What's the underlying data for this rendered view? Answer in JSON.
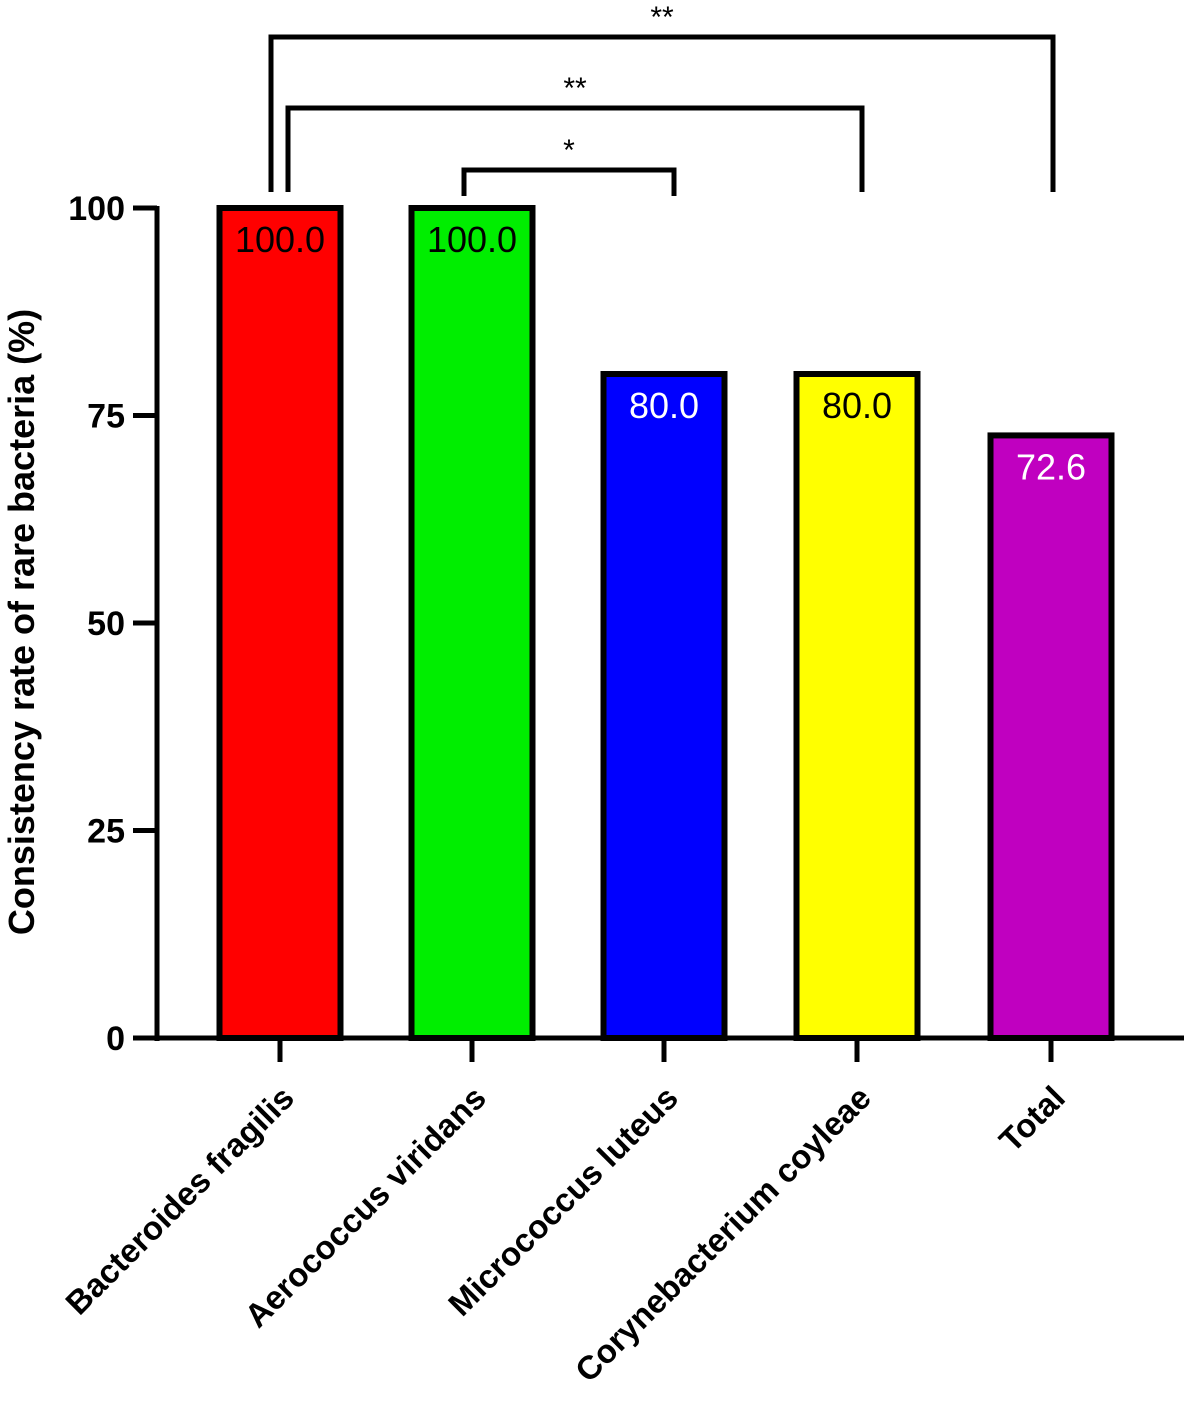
{
  "chart_data": {
    "type": "bar",
    "categories": [
      "Bacteroides fragilis",
      "Aerococcus viridans",
      "Micrococcus luteus",
      "Corynebacterium coyleae",
      "Total"
    ],
    "values": [
      100.0,
      100.0,
      80.0,
      80.0,
      72.6
    ],
    "value_labels": [
      "100.0",
      "100.0",
      "80.0",
      "80.0",
      "72.6"
    ],
    "bar_colors": [
      "#ff0000",
      "#00ee00",
      "#0000ff",
      "#ffff00",
      "#c000c0"
    ],
    "label_colors": [
      "#000000",
      "#000000",
      "#ffffff",
      "#000000",
      "#ffffff"
    ],
    "ylabel": "Consistency rate of rare bacteria (%)",
    "ylim": [
      0,
      100
    ],
    "yticks": [
      0,
      25,
      50,
      75,
      100
    ],
    "ytick_labels": [
      "0",
      "25",
      "50",
      "75",
      "100"
    ],
    "grid": false,
    "significance": [
      {
        "from": 1,
        "to": 2,
        "label": "*"
      },
      {
        "from": 0,
        "to": 3,
        "label": "**"
      },
      {
        "from": 0,
        "to": 4,
        "label": "**"
      }
    ]
  }
}
